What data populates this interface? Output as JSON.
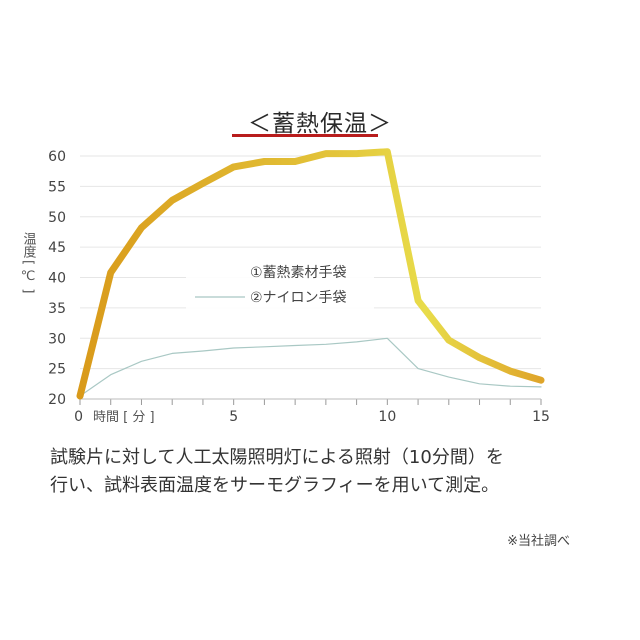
{
  "title": "＜蓄熱保温＞",
  "y_axis_title": {
    "line1": "温度",
    "line2": "[ ℃ ]"
  },
  "x_axis_unit": "時間 [ 分 ]",
  "caption_lines": [
    "試験片に対して人工太陽照明灯による照射（10分間）を",
    "行い、試料表面温度をサーモグラフィーを用いて測定。"
  ],
  "source_note": "※当社調べ",
  "colors": {
    "title_underline": "#b81c1c",
    "series_gold_start": "#d99a1a",
    "series_gold_end": "#e8dc4a",
    "series_nylon": "#a9c8c4",
    "grid": "#e6e6e6"
  },
  "chart_data": {
    "type": "line",
    "title": "＜蓄熱保温＞",
    "xlabel": "時間 [ 分 ]",
    "ylabel": "温度 [ ℃ ]",
    "x": [
      0,
      1,
      2,
      3,
      4,
      5,
      6,
      7,
      8,
      9,
      10,
      11,
      12,
      13,
      14,
      15
    ],
    "xlim": [
      0,
      15
    ],
    "ylim": [
      20,
      60
    ],
    "x_ticks": [
      0,
      5,
      10,
      15
    ],
    "y_ticks": [
      20,
      25,
      30,
      35,
      40,
      45,
      50,
      55,
      60
    ],
    "grid": true,
    "legend_position": "center",
    "series": [
      {
        "name": "①蓄熱素材手袋",
        "values": [
          20.5,
          40.8,
          48.2,
          52.7,
          55.5,
          58.2,
          59.1,
          59.1,
          60.4,
          60.4,
          60.7,
          36.2,
          29.7,
          26.8,
          24.6,
          23.1
        ]
      },
      {
        "name": "②ナイロン手袋",
        "values": [
          20.5,
          24.0,
          26.2,
          27.5,
          27.9,
          28.4,
          28.6,
          28.8,
          29.0,
          29.4,
          30.0,
          25.0,
          23.6,
          22.5,
          22.1,
          22.0
        ]
      }
    ]
  }
}
